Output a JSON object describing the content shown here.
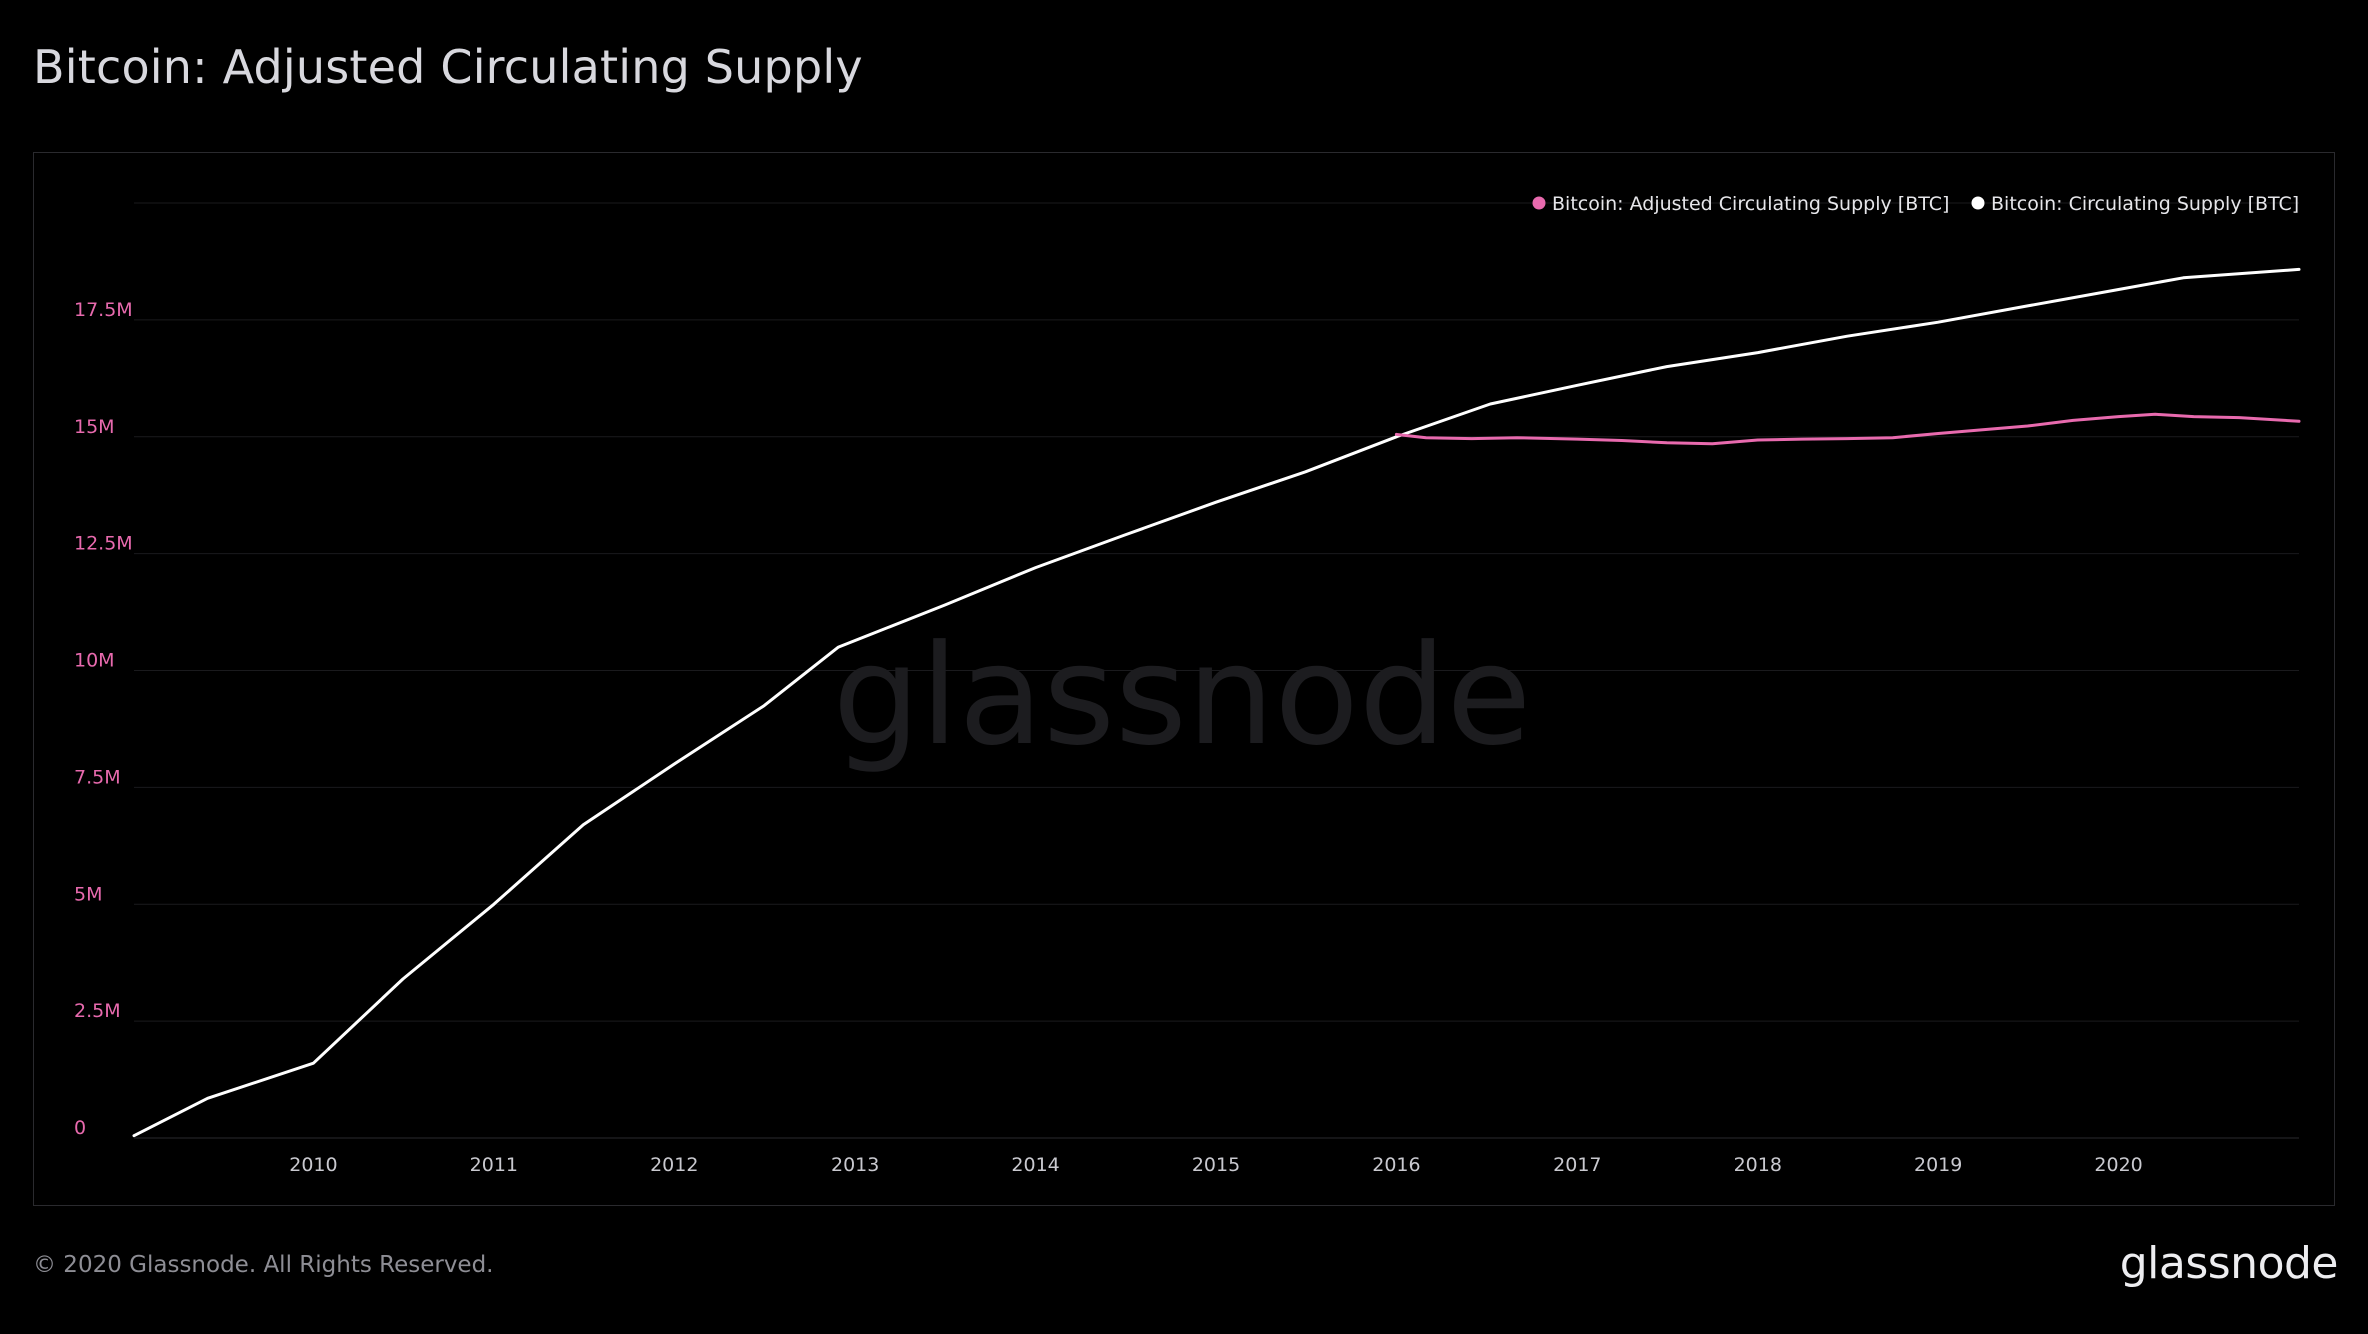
{
  "header": {
    "title": "Bitcoin: Adjusted Circulating Supply"
  },
  "footer": {
    "copyright": "© 2020 Glassnode. All Rights Reserved.",
    "brand": "glassnode"
  },
  "watermark": "glassnode",
  "colors": {
    "background": "#000000",
    "adjusted_series": "#e86aae",
    "circulating_series": "#ffffff",
    "grid": "#1a1a1d",
    "ytick": "#e86aae"
  },
  "chart_data": {
    "type": "line",
    "title": "Bitcoin: Adjusted Circulating Supply",
    "xlabel": "",
    "ylabel": "",
    "xlim": [
      "2009-01-03",
      "2020-12-31"
    ],
    "ylim": [
      0,
      20000000
    ],
    "x_ticks": [
      "2010",
      "2011",
      "2012",
      "2013",
      "2014",
      "2015",
      "2016",
      "2017",
      "2018",
      "2019",
      "2020"
    ],
    "y_ticks": [
      {
        "value": 0,
        "label": "0"
      },
      {
        "value": 2500000,
        "label": "2.5M"
      },
      {
        "value": 5000000,
        "label": "5M"
      },
      {
        "value": 7500000,
        "label": "7.5M"
      },
      {
        "value": 10000000,
        "label": "10M"
      },
      {
        "value": 12500000,
        "label": "12.5M"
      },
      {
        "value": 15000000,
        "label": "15M"
      },
      {
        "value": 17500000,
        "label": "17.5M"
      }
    ],
    "grid": true,
    "legend_position": "top-right",
    "series": [
      {
        "name": "Bitcoin: Adjusted Circulating Supply [BTC]",
        "color": "#e86aae",
        "x": [
          "2016-01-01",
          "2016-03-01",
          "2016-06-01",
          "2016-09-01",
          "2017-01-01",
          "2017-04-01",
          "2017-07-01",
          "2017-10-01",
          "2018-01-01",
          "2018-04-01",
          "2018-07-01",
          "2018-10-01",
          "2019-01-01",
          "2019-04-01",
          "2019-07-01",
          "2019-10-01",
          "2020-01-01",
          "2020-03-15",
          "2020-06-01",
          "2020-09-01",
          "2020-12-31"
        ],
        "values": [
          15050000,
          14980000,
          14960000,
          14980000,
          14950000,
          14920000,
          14870000,
          14850000,
          14930000,
          14950000,
          14960000,
          14980000,
          15070000,
          15150000,
          15230000,
          15350000,
          15430000,
          15480000,
          15430000,
          15410000,
          15330000
        ]
      },
      {
        "name": "Bitcoin: Circulating Supply [BTC]",
        "color": "#ffffff",
        "x": [
          "2009-01-03",
          "2009-06-01",
          "2010-01-01",
          "2010-07-01",
          "2011-01-01",
          "2011-07-01",
          "2012-01-01",
          "2012-07-01",
          "2012-11-28",
          "2013-07-01",
          "2014-01-01",
          "2014-07-01",
          "2015-01-01",
          "2015-07-01",
          "2016-01-01",
          "2016-07-09",
          "2017-01-01",
          "2017-07-01",
          "2018-01-01",
          "2018-07-01",
          "2019-01-01",
          "2019-07-01",
          "2020-01-01",
          "2020-05-11",
          "2020-12-31"
        ],
        "values": [
          50000,
          850000,
          1600000,
          3400000,
          5000000,
          6700000,
          8000000,
          9250000,
          10500000,
          11400000,
          12200000,
          12900000,
          13600000,
          14250000,
          15000000,
          15700000,
          16100000,
          16500000,
          16800000,
          17150000,
          17450000,
          17800000,
          18150000,
          18400000,
          18580000
        ]
      }
    ]
  }
}
